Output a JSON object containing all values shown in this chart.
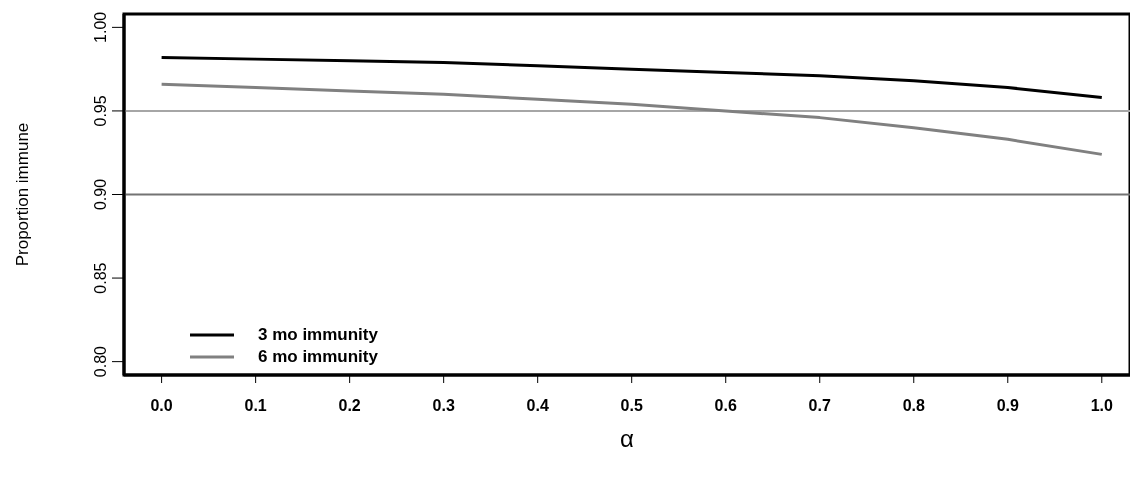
{
  "chart_data": {
    "type": "line",
    "xlabel": "α",
    "ylabel": "Proportion immune",
    "x": [
      0.0,
      0.1,
      0.2,
      0.3,
      0.4,
      0.5,
      0.6,
      0.7,
      0.8,
      0.9,
      1.0
    ],
    "series": [
      {
        "name": "3 mo immunity",
        "color": "#000000",
        "values": [
          0.982,
          0.981,
          0.98,
          0.979,
          0.977,
          0.975,
          0.973,
          0.971,
          0.968,
          0.964,
          0.958
        ]
      },
      {
        "name": "6 mo immunity",
        "color": "#808080",
        "values": [
          0.966,
          0.964,
          0.962,
          0.96,
          0.957,
          0.954,
          0.95,
          0.946,
          0.94,
          0.933,
          0.924
        ]
      }
    ],
    "xlim": [
      -0.04,
      1.03
    ],
    "xticks": [
      "0.0",
      0.1,
      0.2,
      0.3,
      0.4,
      0.5,
      0.6,
      0.7,
      0.8,
      0.9,
      "1.0"
    ],
    "ylim": [
      0.792,
      1.008
    ],
    "yticks": [
      "0.80",
      0.85,
      "0.90",
      0.95,
      "1.00"
    ],
    "ref_lines": [
      {
        "axis": "y",
        "value": 0.95,
        "color": "#a6a6a6"
      },
      {
        "axis": "y",
        "value": 0.9,
        "color": "#737373"
      }
    ],
    "grid": false,
    "legend": "bottom left",
    "marker": "none",
    "line_style": "solid"
  }
}
